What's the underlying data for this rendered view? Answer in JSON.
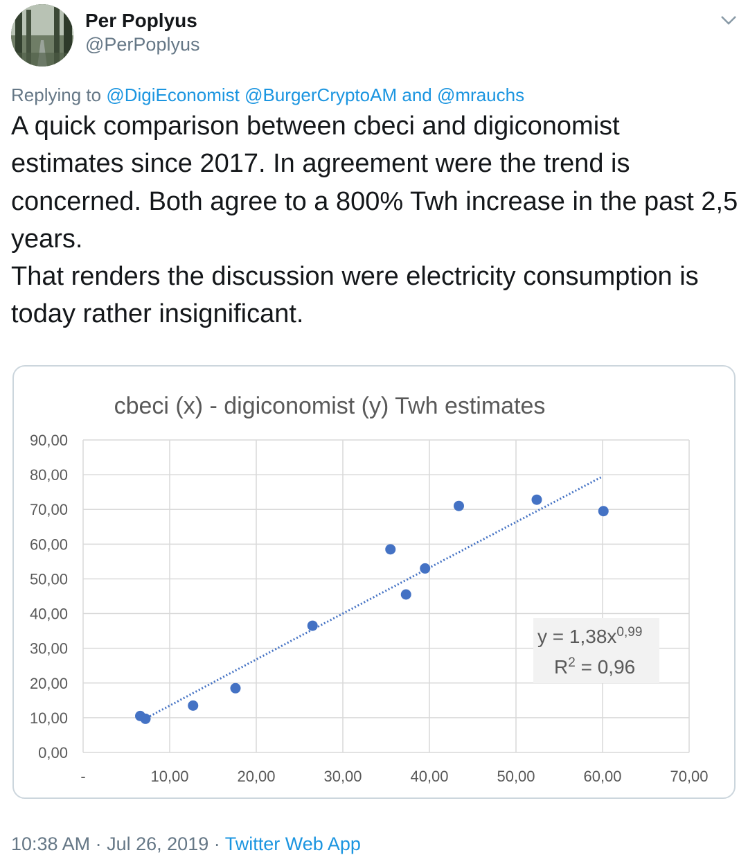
{
  "tweet": {
    "author_name": "Per Poplyus",
    "author_handle": "@PerPoplyus",
    "replying_prefix": "Replying to",
    "reply_mentions": [
      "@DigiEconomist",
      "@BurgerCryptoAM",
      "and",
      "@mrauchs"
    ],
    "text_lines": [
      "A quick comparison between cbeci and digiconomist estimates since 2017. In agreement were the trend is concerned. Both agree to a 800% Twh increase in the past 2,5 years.",
      "That renders the discussion were electricity consumption is today rather insignificant."
    ],
    "time": "10:38 AM",
    "date": "Jul 26, 2019",
    "separator": "·",
    "source": "Twitter Web App",
    "link_color": "#1b95e0",
    "muted_color": "#657786",
    "menu_icon": "chevron-down-icon"
  },
  "chart_data": {
    "type": "scatter",
    "title": "cbeci (x) - digiconomist (y)  Twh estimates",
    "x_tick_labels": [
      "-",
      "10,00",
      "20,00",
      "30,00",
      "40,00",
      "50,00",
      "60,00",
      "70,00"
    ],
    "y_tick_labels": [
      "0,00",
      "10,00",
      "20,00",
      "30,00",
      "40,00",
      "50,00",
      "60,00",
      "70,00",
      "80,00",
      "90,00"
    ],
    "xlim": [
      0,
      70
    ],
    "ylim": [
      0,
      90
    ],
    "grid": true,
    "point_color": "#4472c4",
    "points": [
      {
        "x": 6.6,
        "y": 10.5
      },
      {
        "x": 7.2,
        "y": 9.7
      },
      {
        "x": 12.7,
        "y": 13.5
      },
      {
        "x": 17.6,
        "y": 18.5
      },
      {
        "x": 26.5,
        "y": 36.5
      },
      {
        "x": 35.5,
        "y": 58.5
      },
      {
        "x": 37.3,
        "y": 45.5
      },
      {
        "x": 39.5,
        "y": 53.0
      },
      {
        "x": 43.4,
        "y": 71.0
      },
      {
        "x": 52.4,
        "y": 72.8
      },
      {
        "x": 60.1,
        "y": 69.5
      }
    ],
    "trendline": {
      "type": "power",
      "coef": 1.38,
      "exponent": 0.99,
      "x_range": [
        7,
        60
      ],
      "style": "dotted"
    },
    "equation": {
      "line1_prefix": "y = 1,38x",
      "line1_exponent": "0,99",
      "line2_prefix": "R",
      "line2_exponent": "2",
      "line2_suffix": " = 0,96"
    }
  }
}
